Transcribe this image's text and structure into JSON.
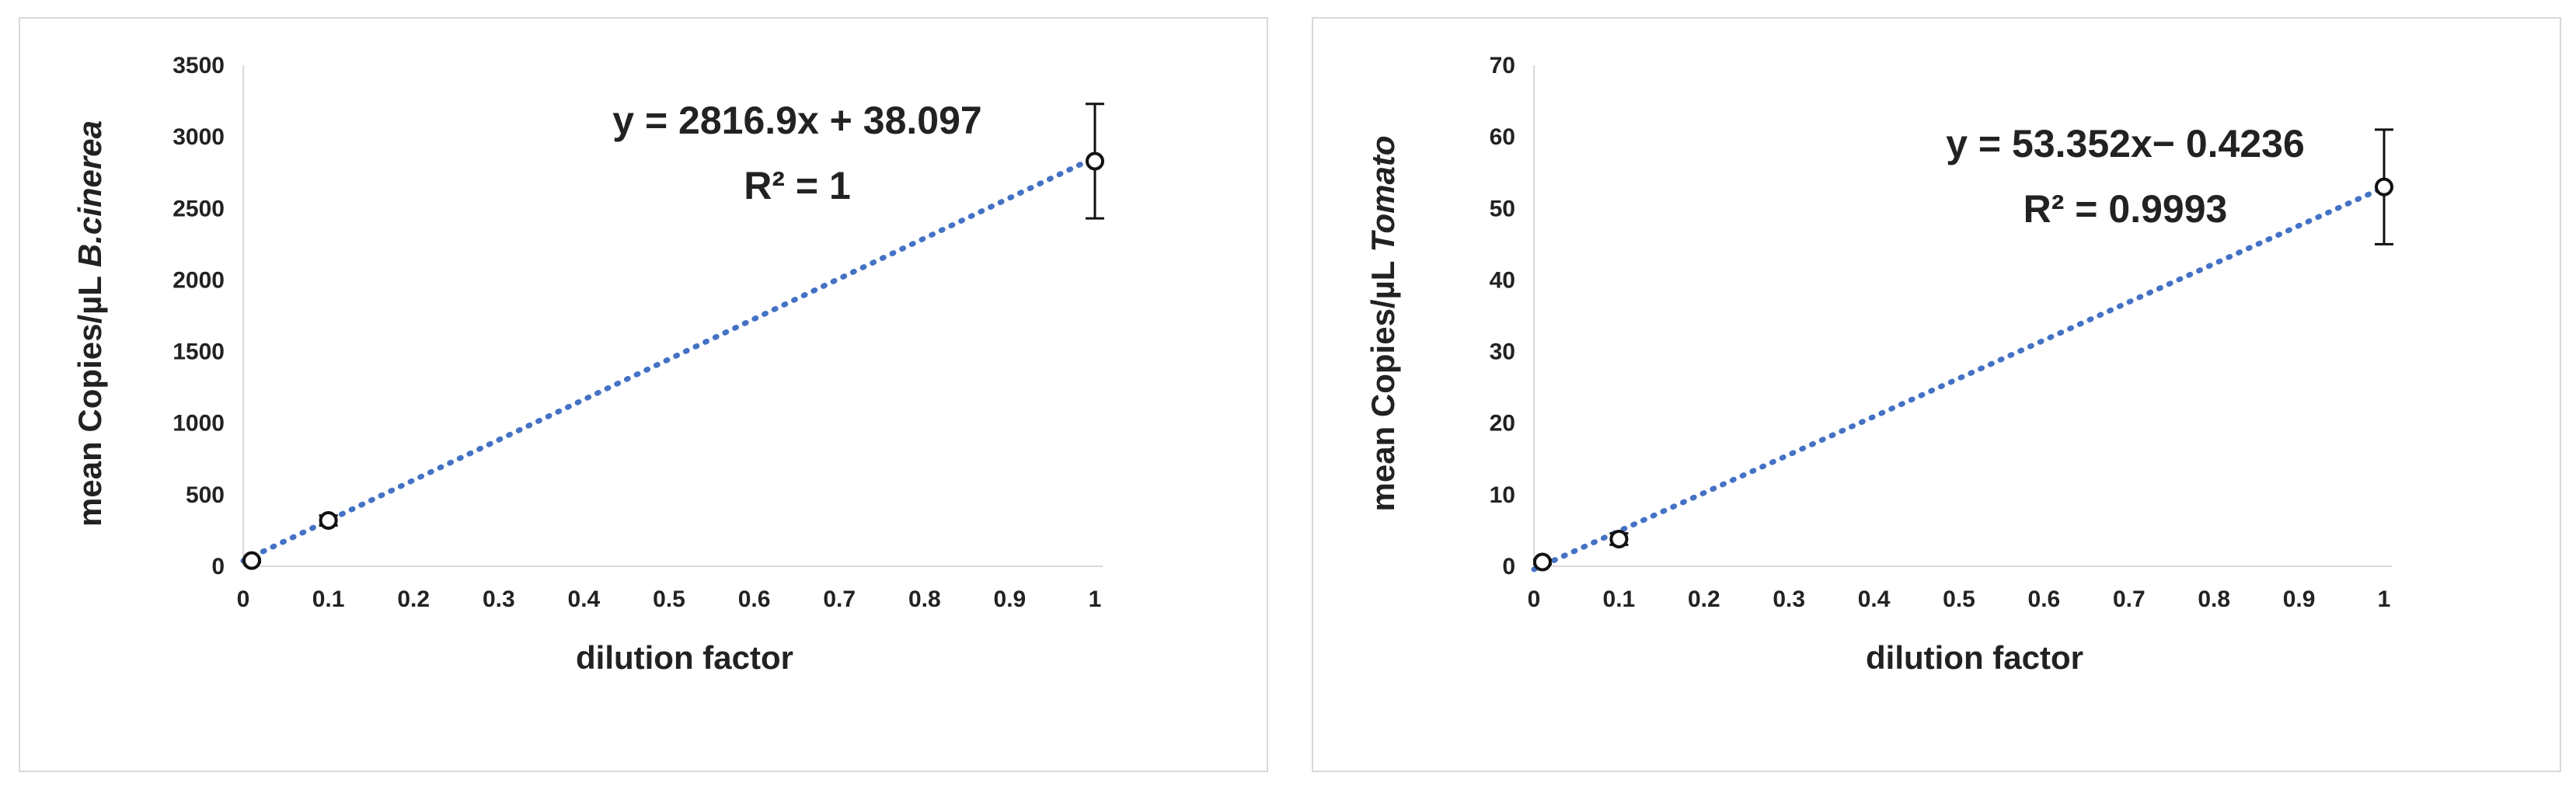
{
  "chart_data": [
    {
      "type": "scatter",
      "xlabel": "dilution factor",
      "ylabel_plain": "mean  Copies/µL ",
      "ylabel_italic": "B.cinerea",
      "xlim": [
        0,
        1
      ],
      "ylim": [
        0,
        3500
      ],
      "xticks": [
        0,
        0.1,
        0.2,
        0.3,
        0.4,
        0.5,
        0.6,
        0.7,
        0.8,
        0.9,
        1
      ],
      "xtick_labels": [
        "0",
        "0.1",
        "0.2",
        "0.3",
        "0.4",
        "0.5",
        "0.6",
        "0.7",
        "0.8",
        "0.9",
        "1"
      ],
      "yticks": [
        0,
        500,
        1000,
        1500,
        2000,
        2500,
        3000,
        3500
      ],
      "ytick_labels": [
        "0",
        "500",
        "1000",
        "1500",
        "2000",
        "2500",
        "3000",
        "3500"
      ],
      "points": [
        {
          "x": 0.01,
          "y": 40,
          "err": 12
        },
        {
          "x": 0.1,
          "y": 320,
          "err": 35
        },
        {
          "x": 1,
          "y": 2830,
          "err": 400
        }
      ],
      "trendline": {
        "slope": 2816.9,
        "intercept": 38.097,
        "style": "dotted",
        "color": "#4472c4"
      },
      "equation": "y = 2816.9x + 38.097",
      "r2": "R² = 1",
      "grid": false
    },
    {
      "type": "scatter",
      "xlabel": "dilution factor",
      "ylabel_plain": "mean  Copies/µL ",
      "ylabel_italic": "Tomato",
      "xlim": [
        0,
        1
      ],
      "ylim": [
        0,
        70
      ],
      "xticks": [
        0,
        0.1,
        0.2,
        0.3,
        0.4,
        0.5,
        0.6,
        0.7,
        0.8,
        0.9,
        1
      ],
      "xtick_labels": [
        "0",
        "0.1",
        "0.2",
        "0.3",
        "0.4",
        "0.5",
        "0.6",
        "0.7",
        "0.8",
        "0.9",
        "1"
      ],
      "yticks": [
        0,
        10,
        20,
        30,
        40,
        50,
        60,
        70
      ],
      "ytick_labels": [
        "0",
        "10",
        "20",
        "30",
        "40",
        "50",
        "60",
        "70"
      ],
      "points": [
        {
          "x": 0.01,
          "y": 0.6,
          "err": 0.3
        },
        {
          "x": 0.1,
          "y": 3.8,
          "err": 0.8
        },
        {
          "x": 1,
          "y": 53,
          "err": 8
        }
      ],
      "trendline": {
        "slope": 53.352,
        "intercept": -0.4236,
        "style": "dotted",
        "color": "#4472c4"
      },
      "equation": "y = 53.352x− 0.4236",
      "r2": "R² = 0.9993",
      "grid": false
    }
  ]
}
